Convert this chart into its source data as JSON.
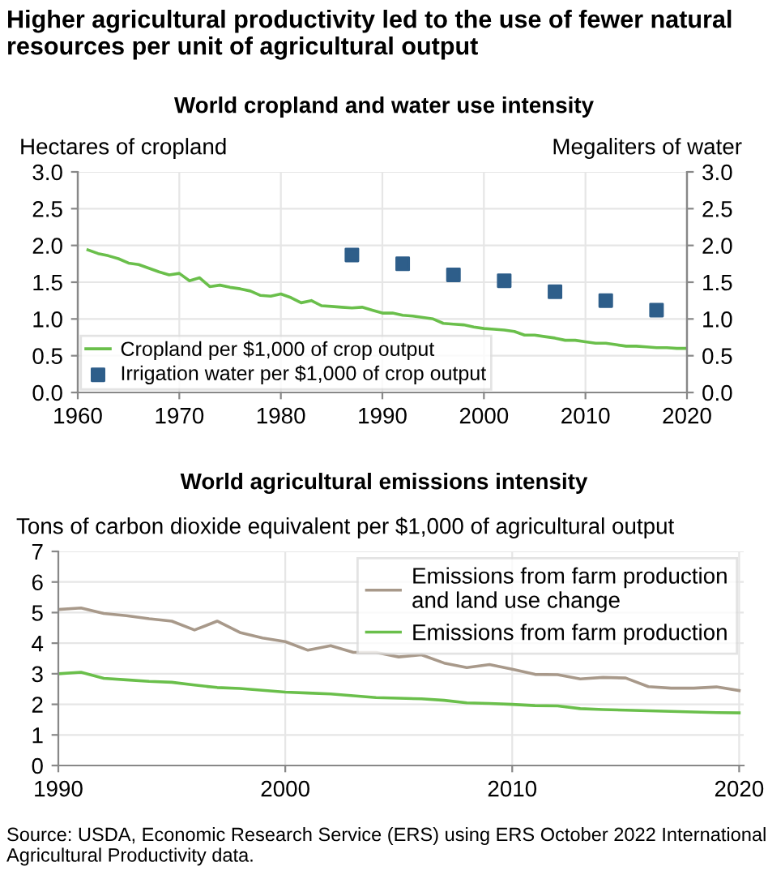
{
  "chart_data": [
    {
      "type": "line",
      "title": "Higher agricultural productivity led to the use of fewer natural resources per unit of agricultural output",
      "subtitle": "World cropland and water use intensity",
      "ylabel": "Hectares of cropland",
      "y2label": "Megaliters of water",
      "xlim": [
        1960,
        2020
      ],
      "xticks": [
        1960,
        1970,
        1980,
        1990,
        2000,
        2010,
        2020
      ],
      "ylim": [
        0,
        3
      ],
      "yticks": [
        {
          "value": 0,
          "label": "0.0"
        },
        0.5,
        {
          "value": 1,
          "label": "1.0"
        },
        1.5,
        {
          "value": 2,
          "label": "2.0"
        },
        2.5,
        {
          "value": 3,
          "label": "3.0"
        }
      ],
      "y2lim": [
        0,
        3
      ],
      "y2ticks": [
        {
          "value": 0,
          "label": "0.0"
        },
        0.5,
        {
          "value": 1,
          "label": "1.0"
        },
        1.5,
        {
          "value": 2,
          "label": "2.0"
        },
        2.5,
        {
          "value": 3,
          "label": "3.0"
        }
      ],
      "grid": true,
      "legend": "bottom left",
      "series": [
        {
          "name": "Cropland per $1,000 of crop output",
          "type": "line",
          "color": "#6abf4b",
          "x": [
            1961,
            1962,
            1963,
            1964,
            1965,
            1966,
            1967,
            1968,
            1969,
            1970,
            1971,
            1972,
            1973,
            1974,
            1975,
            1976,
            1977,
            1978,
            1979,
            1980,
            1981,
            1982,
            1983,
            1984,
            1985,
            1986,
            1987,
            1988,
            1989,
            1990,
            1991,
            1992,
            1993,
            1994,
            1995,
            1996,
            1997,
            1998,
            1999,
            2000,
            2001,
            2002,
            2003,
            2004,
            2005,
            2006,
            2007,
            2008,
            2009,
            2010,
            2011,
            2012,
            2013,
            2014,
            2015,
            2016,
            2017,
            2018,
            2019,
            2020
          ],
          "values": [
            1.94,
            1.89,
            1.86,
            1.82,
            1.76,
            1.74,
            1.69,
            1.64,
            1.6,
            1.62,
            1.52,
            1.56,
            1.44,
            1.46,
            1.43,
            1.41,
            1.38,
            1.32,
            1.31,
            1.34,
            1.29,
            1.22,
            1.25,
            1.18,
            1.17,
            1.16,
            1.15,
            1.16,
            1.12,
            1.08,
            1.08,
            1.05,
            1.04,
            1.02,
            1.0,
            0.94,
            0.93,
            0.92,
            0.89,
            0.87,
            0.86,
            0.85,
            0.83,
            0.78,
            0.78,
            0.76,
            0.74,
            0.71,
            0.71,
            0.69,
            0.67,
            0.67,
            0.65,
            0.63,
            0.63,
            0.62,
            0.61,
            0.61,
            0.6,
            0.6
          ]
        },
        {
          "name": "Irrigation water per $1,000 of crop output",
          "type": "scatter",
          "axis": "y2",
          "marker": "square",
          "color": "#2e5e8a",
          "x": [
            1987,
            1992,
            1997,
            2002,
            2007,
            2012,
            2017
          ],
          "values": [
            1.87,
            1.75,
            1.6,
            1.52,
            1.37,
            1.25,
            1.12
          ]
        }
      ]
    },
    {
      "type": "line",
      "title": "World agricultural emissions intensity",
      "ylabel": "Tons of carbon dioxide equivalent per $1,000 of agricultural output",
      "xlim": [
        1990,
        2020.2
      ],
      "xticks": [
        1990,
        2000,
        2010,
        2020
      ],
      "ylim": [
        0,
        7
      ],
      "yticks": [
        0,
        1,
        2,
        3,
        4,
        5,
        6,
        7
      ],
      "grid": true,
      "legend": "top right",
      "series": [
        {
          "name": "Emissions from farm production\nand land use change",
          "color": "#a8998a",
          "x": [
            1990,
            1991,
            1992,
            1993,
            1994,
            1995,
            1996,
            1997,
            1998,
            1999,
            2000,
            2001,
            2002,
            2003,
            2004,
            2005,
            2006,
            2007,
            2008,
            2009,
            2010,
            2011,
            2012,
            2013,
            2014,
            2015,
            2016,
            2017,
            2018,
            2019,
            2020
          ],
          "values": [
            5.1,
            5.15,
            4.97,
            4.9,
            4.8,
            4.72,
            4.43,
            4.72,
            4.35,
            4.17,
            4.05,
            3.77,
            3.92,
            3.7,
            3.7,
            3.55,
            3.62,
            3.35,
            3.2,
            3.3,
            3.15,
            2.98,
            2.97,
            2.83,
            2.88,
            2.86,
            2.58,
            2.53,
            2.53,
            2.57,
            2.45
          ]
        },
        {
          "name": "Emissions from farm production",
          "color": "#6abf4b",
          "x": [
            1990,
            1991,
            1992,
            1993,
            1994,
            1995,
            1996,
            1997,
            1998,
            1999,
            2000,
            2001,
            2002,
            2003,
            2004,
            2005,
            2006,
            2007,
            2008,
            2009,
            2010,
            2011,
            2012,
            2013,
            2014,
            2015,
            2016,
            2017,
            2018,
            2019,
            2020
          ],
          "values": [
            3.0,
            3.05,
            2.85,
            2.8,
            2.75,
            2.72,
            2.63,
            2.55,
            2.52,
            2.46,
            2.4,
            2.37,
            2.34,
            2.28,
            2.22,
            2.2,
            2.18,
            2.13,
            2.05,
            2.03,
            2.0,
            1.96,
            1.95,
            1.86,
            1.83,
            1.81,
            1.79,
            1.77,
            1.75,
            1.73,
            1.72
          ]
        }
      ],
      "annotations": [
        "Source: USDA, Economic Research Service (ERS) using ERS October 2022 International Agricultural Productivity data."
      ]
    }
  ]
}
